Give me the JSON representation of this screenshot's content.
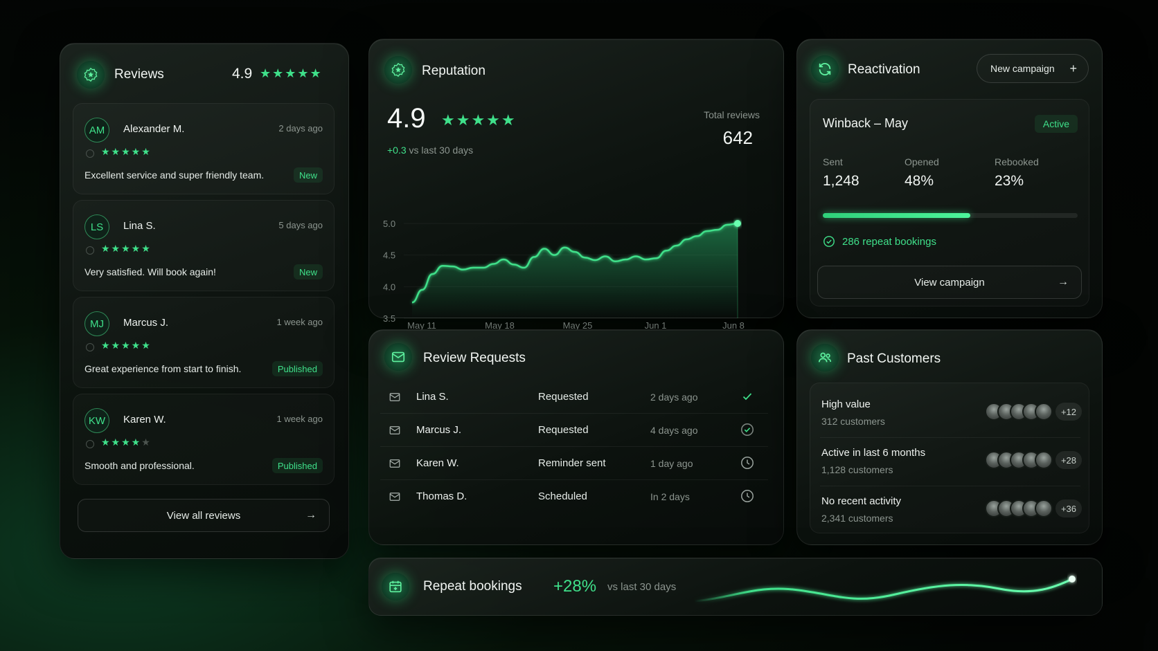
{
  "colors": {
    "accent": "#3fe08a",
    "background": "#030604",
    "panel": "#141b17"
  },
  "reviews": {
    "title": "Reviews",
    "rating": "4.9",
    "stars": "★★★★★",
    "items": [
      {
        "initials": "AM",
        "name": "Alexander M.",
        "time": "2 days ago",
        "stars": "★★★★★",
        "empty": "",
        "text": "Excellent service and super friendly team.",
        "tag": "New"
      },
      {
        "initials": "LS",
        "name": "Lina S.",
        "time": "5 days ago",
        "stars": "★★★★★",
        "empty": "",
        "text": "Very satisfied. Will book again!",
        "tag": "New"
      },
      {
        "initials": "MJ",
        "name": "Marcus J.",
        "time": "1 week ago",
        "stars": "★★★★★",
        "empty": "",
        "text": "Great experience from start to finish.",
        "tag": "Published"
      },
      {
        "initials": "KW",
        "name": "Karen W.",
        "time": "1 week ago",
        "stars": "★★★★",
        "empty": "★",
        "text": "Smooth and professional.",
        "tag": "Published"
      }
    ],
    "view_all": "View all reviews"
  },
  "reputation": {
    "title": "Reputation",
    "rating": "4.9",
    "stars": "★★★★★",
    "delta": "+0.3",
    "delta_suffix": "vs last 30 days",
    "total_label": "Total reviews",
    "total_value": "642"
  },
  "chart_data": {
    "type": "area",
    "x_ticks": [
      "May 11",
      "May 18",
      "May 25",
      "Jun 1",
      "Jun 8"
    ],
    "y_ticks": [
      "5.0",
      "4.5",
      "4.0",
      "3.5"
    ],
    "ylim": [
      3.5,
      5.0
    ],
    "series": [
      {
        "values": [
          3.75,
          3.95,
          4.2,
          4.33,
          4.32,
          4.27,
          4.3,
          4.3,
          4.36,
          4.43,
          4.35,
          4.3,
          4.47,
          4.6,
          4.5,
          4.62,
          4.55,
          4.46,
          4.42,
          4.48,
          4.4,
          4.43,
          4.48,
          4.43,
          4.45,
          4.57,
          4.65,
          4.75,
          4.8,
          4.88,
          4.9,
          4.98,
          5.0
        ]
      }
    ]
  },
  "reactivation": {
    "title": "Reactivation",
    "new_campaign": "New campaign",
    "campaign_name": "Winback – May",
    "status": "Active",
    "stats": [
      {
        "label": "Sent",
        "value": "1,248"
      },
      {
        "label": "Opened",
        "value": "48%"
      },
      {
        "label": "Rebooked",
        "value": "23%"
      }
    ],
    "progress": 0.58,
    "repeat_text": "286 repeat bookings",
    "view_campaign": "View campaign"
  },
  "review_requests": {
    "title": "Review Requests",
    "rows": [
      {
        "name": "Lina S.",
        "status": "Requested",
        "time": "2 days ago",
        "icon": "check-icon"
      },
      {
        "name": "Marcus J.",
        "status": "Requested",
        "time": "4 days ago",
        "icon": "check-circle-icon"
      },
      {
        "name": "Karen W.",
        "status": "Reminder sent",
        "time": "1 day ago",
        "icon": "clock-icon"
      },
      {
        "name": "Thomas D.",
        "status": "Scheduled",
        "time": "In 2 days",
        "icon": "clock-icon"
      }
    ]
  },
  "past_customers": {
    "title": "Past Customers",
    "segments": [
      {
        "label": "High value",
        "count": "312 customers",
        "more": "+12"
      },
      {
        "label": "Active in last 6 months",
        "count": "1,128 customers",
        "more": "+28"
      },
      {
        "label": "No recent activity",
        "count": "2,341 customers",
        "more": "+36"
      }
    ]
  },
  "repeat_bookings": {
    "title": "Repeat bookings",
    "value": "+28%",
    "suffix": "vs last 30 days"
  }
}
